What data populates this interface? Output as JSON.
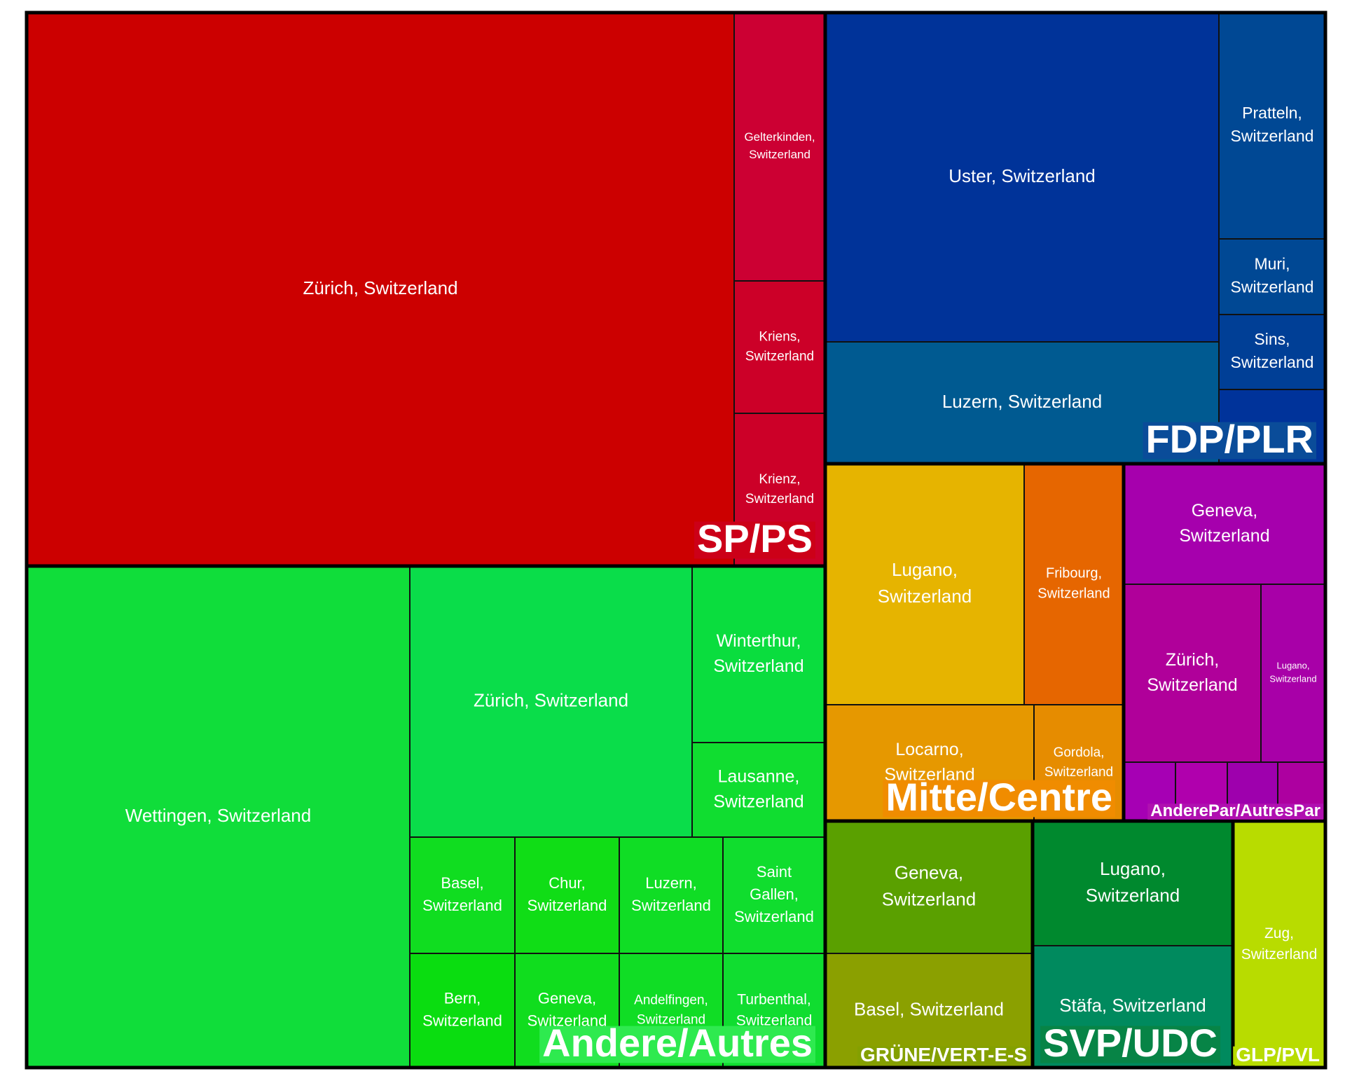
{
  "chart_data": {
    "type": "treemap",
    "groups": [
      {
        "label": "SP/PS",
        "color": "#CC0000",
        "label_bg": "#CC0018",
        "tiles": [
          {
            "label": "Zürich, Switzerland",
            "color": "#CC0000"
          },
          {
            "label": "Gelterkinden,\nSwitzerland",
            "color": "#CC0033"
          },
          {
            "label": "Kriens,\nSwitzerland",
            "color": "#CC0028"
          },
          {
            "label": "Krienz,\nSwitzerland",
            "color": "#CC0028"
          }
        ]
      },
      {
        "label": "FDP/PLR",
        "color": "#003399",
        "label_bg": "#0A4C99",
        "tiles": [
          {
            "label": "Uster, Switzerland",
            "color": "#003399"
          },
          {
            "label": "Luzern, Switzerland",
            "color": "#005A91"
          },
          {
            "label": "Pratteln,\nSwitzerland",
            "color": "#004894"
          },
          {
            "label": "Muri,\nSwitzerland",
            "color": "#004894"
          },
          {
            "label": "Sins,\nSwitzerland",
            "color": "#003F96"
          },
          {
            "label": "",
            "color": "#00339A"
          }
        ]
      },
      {
        "label": "Andere/Autres",
        "color": "#10DD3A",
        "label_bg": "#2EEA4F",
        "tiles": [
          {
            "label": "Wettingen, Switzerland",
            "color": "#10DD3A"
          },
          {
            "label": "Zürich, Switzerland",
            "color": "#0ADD4A"
          },
          {
            "label": "Winterthur,\nSwitzerland",
            "color": "#0ADD3E"
          },
          {
            "label": "Lausanne,\nSwitzerland",
            "color": "#10DD30"
          },
          {
            "label": "Basel,\nSwitzerland",
            "color": "#10DD20"
          },
          {
            "label": "Chur,\nSwitzerland",
            "color": "#10DD16"
          },
          {
            "label": "Luzern,\nSwitzerland",
            "color": "#10DD25"
          },
          {
            "label": "Saint\nGallen,\nSwitzerland",
            "color": "#10DD2E"
          },
          {
            "label": "Bern,\nSwitzerland",
            "color": "#0ADD10"
          },
          {
            "label": "Geneva,\nSwitzerland",
            "color": "#10DD1E"
          },
          {
            "label": "Andelfingen,\nSwitzerland",
            "color": "#10DD25"
          },
          {
            "label": "Turbenthal,\nSwitzerland",
            "color": "#10DD30"
          }
        ]
      },
      {
        "label": "Mitte/Centre",
        "color": "#E6B800",
        "label_bg": "#F08C00",
        "tiles": [
          {
            "label": "Lugano,\nSwitzerland",
            "color": "#E6B400"
          },
          {
            "label": "Fribourg,\nSwitzerland",
            "color": "#E66600"
          },
          {
            "label": "Locarno,\nSwitzerland",
            "color": "#E69800"
          },
          {
            "label": "Gordola,\nSwitzerland",
            "color": "#E68C00"
          }
        ]
      },
      {
        "label": "AnderePar/AutresPar",
        "color": "#A600AD",
        "label_bg": "#B010B0",
        "tiles": [
          {
            "label": "Geneva,\nSwitzerland",
            "color": "#A600AD"
          },
          {
            "label": "Zürich,\nSwitzerland",
            "color": "#B0009A"
          },
          {
            "label": "Lugano,\nSwitzerland",
            "color": "#A800A8"
          },
          {
            "label": "",
            "color": "#A600B4"
          },
          {
            "label": "",
            "color": "#B000AD"
          },
          {
            "label": "",
            "color": "#9E00AD"
          },
          {
            "label": "",
            "color": "#AD00A0"
          }
        ]
      },
      {
        "label": "GRÜNE/VERT-E-S",
        "color": "#5AA000",
        "label_bg": "#84A000",
        "tiles": [
          {
            "label": "Geneva,\nSwitzerland",
            "color": "#5AA000"
          },
          {
            "label": "Basel, Switzerland",
            "color": "#8BA000"
          }
        ]
      },
      {
        "label": "SVP/UDC",
        "color": "#00892E",
        "label_bg": "#078446",
        "tiles": [
          {
            "label": "Lugano,\nSwitzerland",
            "color": "#00892E"
          },
          {
            "label": "Stäfa, Switzerland",
            "color": "#008A5E"
          }
        ]
      },
      {
        "label": "GLP/PVL",
        "color": "#B8DC00",
        "label_bg": "#B8DC00",
        "tiles": [
          {
            "label": "Zug,\nSwitzerland",
            "color": "#B8DC00"
          }
        ]
      }
    ]
  }
}
